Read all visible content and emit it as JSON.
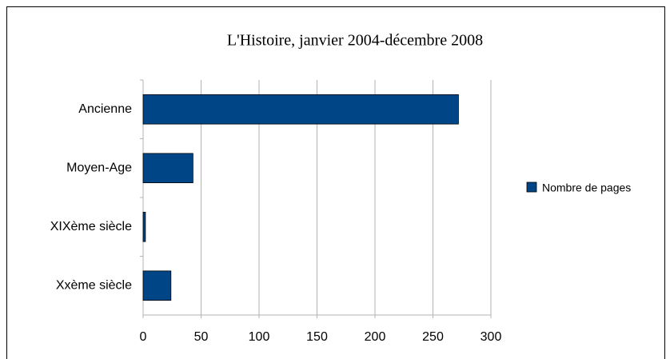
{
  "chart_data": {
    "type": "hbar",
    "title": "L'Histoire, janvier 2004-décembre 2008",
    "categories": [
      "Ancienne",
      "Moyen-Age",
      "XIXème siècle",
      "Xxème siècle"
    ],
    "series": [
      {
        "name": "Nombre de pages",
        "color": "#004586",
        "values": [
          272,
          43,
          2,
          24
        ]
      }
    ],
    "xlim": [
      0,
      300
    ],
    "xticks": [
      0,
      50,
      100,
      150,
      200,
      250,
      300
    ],
    "grid": true,
    "legend": "right"
  }
}
